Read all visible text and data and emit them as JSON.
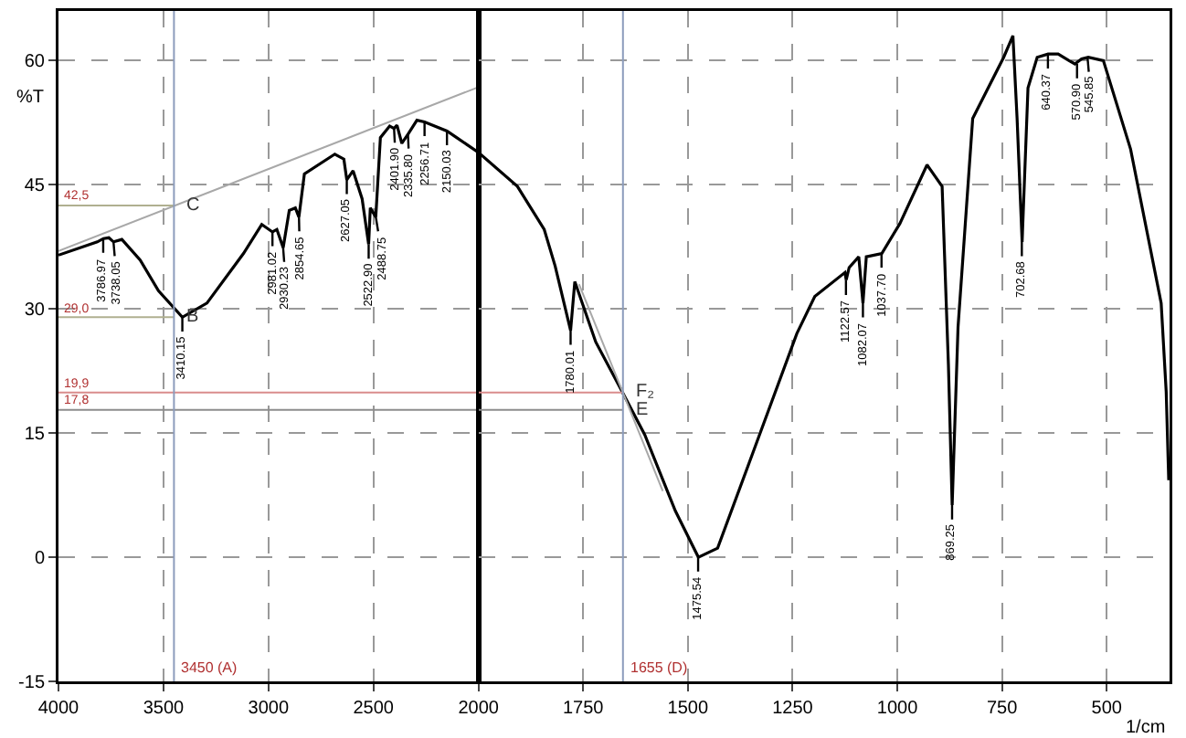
{
  "chart_data": [
    {
      "type": "line",
      "ylabel": "%T",
      "xlim": [
        4000,
        2000
      ],
      "xticks": [
        4000,
        3500,
        3000,
        2500,
        2000
      ],
      "ylim": [
        -15,
        66
      ],
      "yticks": [
        -15,
        0,
        15,
        30,
        45,
        60
      ],
      "grid": true,
      "marker": "none",
      "tick_labels": "xy",
      "series": [
        {
          "color": "#000000",
          "x": [
            4000,
            3815,
            3786,
            3760,
            3738,
            3698,
            3611,
            3524,
            3410,
            3293,
            3119,
            3032,
            2981,
            2960,
            2930,
            2901,
            2872,
            2855,
            2829,
            2684,
            2641,
            2627,
            2597,
            2554,
            2523,
            2515,
            2489,
            2467,
            2423,
            2402,
            2388,
            2365,
            2336,
            2293,
            2257,
            2150,
            2104,
            2000
          ],
          "values": [
            36.5,
            38.1,
            38.5,
            38.6,
            38.1,
            38.4,
            35.9,
            32.2,
            29.0,
            30.7,
            36.7,
            40.2,
            39.3,
            39.6,
            37.4,
            41.9,
            42.2,
            41.1,
            46.3,
            48.7,
            48.1,
            45.6,
            46.7,
            43.3,
            37.8,
            42.2,
            41.1,
            50.7,
            52.1,
            51.8,
            52.2,
            50.0,
            51.1,
            52.8,
            52.6,
            51.5,
            50.7,
            48.9
          ]
        },
        {
          "color": "#a8a8a8",
          "x": [
            4000,
            2000
          ],
          "values": [
            37,
            56.8
          ]
        },
        {
          "color": "#b0b090",
          "x": [
            4000,
            3450
          ],
          "values": [
            42.5,
            42.5
          ]
        },
        {
          "color": "#b0b090",
          "x": [
            4000,
            3450
          ],
          "values": [
            29.0,
            29.0
          ]
        },
        {
          "color": "#d98c8c",
          "x": [
            4000,
            2000
          ],
          "values": [
            19.9,
            19.9
          ]
        },
        {
          "color": "#8c8c8c",
          "x": [
            4000,
            2000
          ],
          "values": [
            17.8,
            17.8
          ]
        }
      ],
      "ref_lines": [
        {
          "axis": "x",
          "value": 3450,
          "label": "3450 (A)",
          "color": "#8c9cbc"
        }
      ],
      "annotations": [
        {
          "text": "42,5",
          "x": 4000,
          "y": 42.5
        },
        {
          "text": "29,0",
          "x": 4000,
          "y": 29.0
        },
        {
          "text": "19,9",
          "x": 4000,
          "y": 19.9
        },
        {
          "text": "17,8",
          "x": 4000,
          "y": 17.8
        },
        {
          "text": "C",
          "x": 3450,
          "y": 42.5
        },
        {
          "text": "B",
          "x": 3450,
          "y": 29.0
        },
        {
          "text": "3786.97",
          "x": 3786.97,
          "y": 38.5
        },
        {
          "text": "3738.05",
          "x": 3738.05,
          "y": 38.1
        },
        {
          "text": "3410.15",
          "x": 3410.15,
          "y": 29.0
        },
        {
          "text": "2981.02",
          "x": 2981.02,
          "y": 39.3
        },
        {
          "text": "2930.23",
          "x": 2930.23,
          "y": 37.4
        },
        {
          "text": "2854.65",
          "x": 2854.65,
          "y": 41.1
        },
        {
          "text": "2627.05",
          "x": 2627.05,
          "y": 45.6
        },
        {
          "text": "2522.90",
          "x": 2522.9,
          "y": 37.8
        },
        {
          "text": "2488.75",
          "x": 2488.75,
          "y": 41.1
        },
        {
          "text": "2401.90",
          "x": 2401.9,
          "y": 51.8
        },
        {
          "text": "2335.80",
          "x": 2335.8,
          "y": 51.1
        },
        {
          "text": "2256.71",
          "x": 2256.71,
          "y": 52.6
        },
        {
          "text": "2150.03",
          "x": 2150.03,
          "y": 51.5
        }
      ]
    },
    {
      "type": "line",
      "xlabel": "1/cm",
      "xlim": [
        2000,
        350
      ],
      "xticks": [
        1750,
        1500,
        1250,
        1000,
        750,
        500
      ],
      "ylim": [
        -15,
        66
      ],
      "yticks": [
        -15,
        0,
        15,
        30,
        45,
        60
      ],
      "grid": true,
      "marker": "none",
      "tick_labels": "x",
      "series": [
        {
          "color": "#000000",
          "x": [
            2000,
            1907,
            1843,
            1817,
            1780,
            1770,
            1720,
            1661,
            1603,
            1530,
            1475,
            1429,
            1342,
            1240,
            1197,
            1125,
            1122,
            1115,
            1092,
            1082,
            1074,
            1037,
            994,
            929,
            893,
            878,
            869,
            855,
            820,
            746,
            724,
            714,
            702,
            688,
            666,
            640,
            616,
            590,
            576,
            560,
            544,
            508,
            443,
            370,
            358,
            352
          ],
          "values": [
            48.9,
            44.8,
            39.6,
            35.2,
            27.4,
            33.3,
            26.0,
            20.4,
            14.8,
            5.6,
            0.0,
            1.1,
            13.0,
            27.0,
            31.5,
            34.4,
            33.5,
            35.0,
            36.3,
            30.7,
            36.3,
            36.7,
            40.3,
            47.4,
            44.8,
            23.3,
            6.3,
            27.8,
            53.0,
            60.4,
            63.0,
            53.0,
            38.1,
            56.7,
            60.4,
            60.8,
            60.8,
            60.0,
            59.6,
            60.2,
            60.4,
            60.0,
            49.3,
            30.7,
            20.0,
            9.3
          ]
        },
        {
          "color": "#d98c8c",
          "x": [
            2000,
            1655
          ],
          "values": [
            19.9,
            19.9
          ]
        },
        {
          "color": "#8c8c8c",
          "x": [
            2000,
            1655
          ],
          "values": [
            17.8,
            17.8
          ]
        },
        {
          "color": "#a8a8a8",
          "x": [
            1760,
            1560
          ],
          "values": [
            33,
            8
          ]
        }
      ],
      "ref_lines": [
        {
          "axis": "x",
          "value": 1655,
          "label": "1655 (D)",
          "color": "#8c9cbc"
        }
      ],
      "annotations": [
        {
          "text": "F₂",
          "x": 1655,
          "y": 19.9
        },
        {
          "text": "E",
          "x": 1655,
          "y": 17.8
        },
        {
          "text": "1780.01",
          "x": 1780.01,
          "y": 27.4
        },
        {
          "text": "1475.54",
          "x": 1475.54,
          "y": 0.0
        },
        {
          "text": "1122.57",
          "x": 1122.57,
          "y": 33.5
        },
        {
          "text": "1082.07",
          "x": 1082.07,
          "y": 30.7
        },
        {
          "text": "1037.70",
          "x": 1037.7,
          "y": 36.7
        },
        {
          "text": "869.25",
          "x": 869.25,
          "y": 6.3
        },
        {
          "text": "702.68",
          "x": 702.68,
          "y": 38.1
        },
        {
          "text": "640.37",
          "x": 640.37,
          "y": 60.8
        },
        {
          "text": "570.90",
          "x": 570.9,
          "y": 59.6
        },
        {
          "text": "545.85",
          "x": 545.85,
          "y": 60.4
        }
      ]
    }
  ]
}
